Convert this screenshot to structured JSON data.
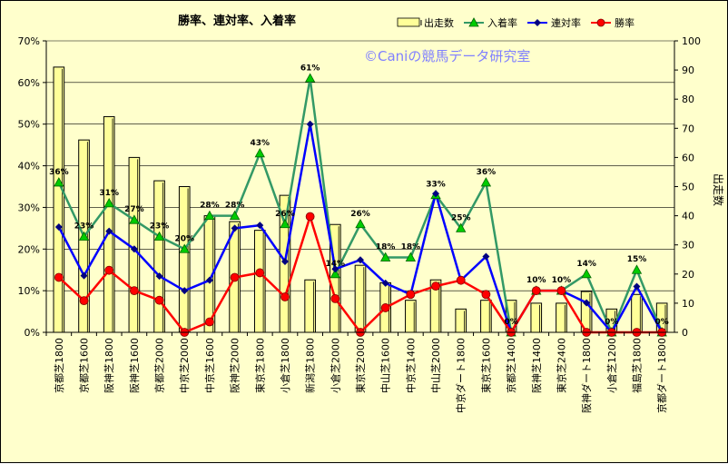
{
  "chart_data": {
    "type": "bar+line",
    "title": "勝率、連対率、入着率",
    "watermark": "©Caniの競馬データ研究室",
    "y2label": "出走数",
    "left_axis": {
      "ylim": [
        0,
        70
      ],
      "ticks": [
        "0%",
        "10%",
        "20%",
        "30%",
        "40%",
        "50%",
        "60%",
        "70%"
      ]
    },
    "right_axis": {
      "ylim": [
        0,
        100
      ],
      "ticks": [
        "0",
        "10",
        "20",
        "30",
        "40",
        "50",
        "60",
        "70",
        "80",
        "90",
        "100"
      ]
    },
    "categories": [
      "京都芝1800",
      "京都芝1600",
      "阪神芝1800",
      "阪神芝1600",
      "京都芝2000",
      "中京芝2000",
      "中京芝1600",
      "阪神芝2000",
      "東京芝1800",
      "小倉芝1800",
      "新潟芝1800",
      "小倉芝2000",
      "東京芝2000",
      "中山芝1600",
      "中京芝1400",
      "中山芝2000",
      "中京ダート1800",
      "東京芝1600",
      "京都芝1400",
      "阪神芝1400",
      "東京芝2400",
      "阪神ダート1800",
      "小倉芝1200",
      "福島芝1800",
      "京都ダート1800"
    ],
    "bar_series": {
      "name": "出走数",
      "values": [
        91,
        66,
        74,
        60,
        52,
        50,
        40,
        38,
        35,
        47,
        18,
        37,
        23,
        17,
        11,
        18,
        8,
        11,
        11,
        10,
        10,
        14,
        8,
        13,
        10
      ]
    },
    "series": [
      {
        "name": "入着率",
        "color": "#339966",
        "values": [
          36,
          23,
          31,
          27,
          23,
          20,
          28,
          28,
          43,
          26,
          61,
          14,
          26,
          18,
          18,
          33,
          25,
          36,
          0,
          10,
          10,
          14,
          0,
          15,
          0
        ]
      },
      {
        "name": "連対率",
        "color": "#0000ff",
        "values": [
          25.3,
          13.6,
          24.3,
          20,
          13.5,
          10,
          12.5,
          25,
          25.7,
          17,
          50,
          15.2,
          17.4,
          11.8,
          9.1,
          33.3,
          12.5,
          18.2,
          0,
          10,
          10,
          7.1,
          0,
          11,
          0
        ]
      },
      {
        "name": "勝率",
        "color": "#ff0000",
        "values": [
          13.2,
          7.6,
          14.9,
          10,
          7.7,
          0,
          2.5,
          13.2,
          14.3,
          8.5,
          27.8,
          8.1,
          0,
          5.9,
          9.1,
          11.1,
          12.5,
          9.1,
          0,
          10,
          10,
          0,
          0,
          0,
          0
        ]
      }
    ],
    "data_labels": [
      "36%",
      "23%",
      "31%",
      "27%",
      "23%",
      "20%",
      "28%",
      "28%",
      "43%",
      "26%",
      "61%",
      "14%",
      "26%",
      "18%",
      "18%",
      "33%",
      "25%",
      "36%",
      "0%",
      "10%",
      "10%",
      "14%",
      "0%",
      "15%",
      "0%"
    ],
    "legend_position": "top-right"
  }
}
